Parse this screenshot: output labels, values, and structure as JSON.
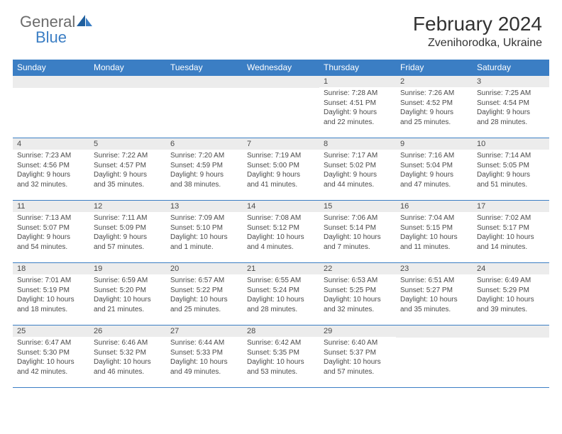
{
  "logo": {
    "general": "General",
    "blue": "Blue"
  },
  "title": {
    "month_year": "February 2024",
    "location": "Zvenihorodka, Ukraine"
  },
  "colors": {
    "header_bg": "#3b7ec4",
    "num_bar_bg": "#ececec",
    "text": "#333333",
    "detail_text": "#4a4a4a"
  },
  "day_names": [
    "Sunday",
    "Monday",
    "Tuesday",
    "Wednesday",
    "Thursday",
    "Friday",
    "Saturday"
  ],
  "weeks": [
    [
      null,
      null,
      null,
      null,
      {
        "num": "1",
        "sunrise": "Sunrise: 7:28 AM",
        "sunset": "Sunset: 4:51 PM",
        "dl1": "Daylight: 9 hours",
        "dl2": "and 22 minutes."
      },
      {
        "num": "2",
        "sunrise": "Sunrise: 7:26 AM",
        "sunset": "Sunset: 4:52 PM",
        "dl1": "Daylight: 9 hours",
        "dl2": "and 25 minutes."
      },
      {
        "num": "3",
        "sunrise": "Sunrise: 7:25 AM",
        "sunset": "Sunset: 4:54 PM",
        "dl1": "Daylight: 9 hours",
        "dl2": "and 28 minutes."
      }
    ],
    [
      {
        "num": "4",
        "sunrise": "Sunrise: 7:23 AM",
        "sunset": "Sunset: 4:56 PM",
        "dl1": "Daylight: 9 hours",
        "dl2": "and 32 minutes."
      },
      {
        "num": "5",
        "sunrise": "Sunrise: 7:22 AM",
        "sunset": "Sunset: 4:57 PM",
        "dl1": "Daylight: 9 hours",
        "dl2": "and 35 minutes."
      },
      {
        "num": "6",
        "sunrise": "Sunrise: 7:20 AM",
        "sunset": "Sunset: 4:59 PM",
        "dl1": "Daylight: 9 hours",
        "dl2": "and 38 minutes."
      },
      {
        "num": "7",
        "sunrise": "Sunrise: 7:19 AM",
        "sunset": "Sunset: 5:00 PM",
        "dl1": "Daylight: 9 hours",
        "dl2": "and 41 minutes."
      },
      {
        "num": "8",
        "sunrise": "Sunrise: 7:17 AM",
        "sunset": "Sunset: 5:02 PM",
        "dl1": "Daylight: 9 hours",
        "dl2": "and 44 minutes."
      },
      {
        "num": "9",
        "sunrise": "Sunrise: 7:16 AM",
        "sunset": "Sunset: 5:04 PM",
        "dl1": "Daylight: 9 hours",
        "dl2": "and 47 minutes."
      },
      {
        "num": "10",
        "sunrise": "Sunrise: 7:14 AM",
        "sunset": "Sunset: 5:05 PM",
        "dl1": "Daylight: 9 hours",
        "dl2": "and 51 minutes."
      }
    ],
    [
      {
        "num": "11",
        "sunrise": "Sunrise: 7:13 AM",
        "sunset": "Sunset: 5:07 PM",
        "dl1": "Daylight: 9 hours",
        "dl2": "and 54 minutes."
      },
      {
        "num": "12",
        "sunrise": "Sunrise: 7:11 AM",
        "sunset": "Sunset: 5:09 PM",
        "dl1": "Daylight: 9 hours",
        "dl2": "and 57 minutes."
      },
      {
        "num": "13",
        "sunrise": "Sunrise: 7:09 AM",
        "sunset": "Sunset: 5:10 PM",
        "dl1": "Daylight: 10 hours",
        "dl2": "and 1 minute."
      },
      {
        "num": "14",
        "sunrise": "Sunrise: 7:08 AM",
        "sunset": "Sunset: 5:12 PM",
        "dl1": "Daylight: 10 hours",
        "dl2": "and 4 minutes."
      },
      {
        "num": "15",
        "sunrise": "Sunrise: 7:06 AM",
        "sunset": "Sunset: 5:14 PM",
        "dl1": "Daylight: 10 hours",
        "dl2": "and 7 minutes."
      },
      {
        "num": "16",
        "sunrise": "Sunrise: 7:04 AM",
        "sunset": "Sunset: 5:15 PM",
        "dl1": "Daylight: 10 hours",
        "dl2": "and 11 minutes."
      },
      {
        "num": "17",
        "sunrise": "Sunrise: 7:02 AM",
        "sunset": "Sunset: 5:17 PM",
        "dl1": "Daylight: 10 hours",
        "dl2": "and 14 minutes."
      }
    ],
    [
      {
        "num": "18",
        "sunrise": "Sunrise: 7:01 AM",
        "sunset": "Sunset: 5:19 PM",
        "dl1": "Daylight: 10 hours",
        "dl2": "and 18 minutes."
      },
      {
        "num": "19",
        "sunrise": "Sunrise: 6:59 AM",
        "sunset": "Sunset: 5:20 PM",
        "dl1": "Daylight: 10 hours",
        "dl2": "and 21 minutes."
      },
      {
        "num": "20",
        "sunrise": "Sunrise: 6:57 AM",
        "sunset": "Sunset: 5:22 PM",
        "dl1": "Daylight: 10 hours",
        "dl2": "and 25 minutes."
      },
      {
        "num": "21",
        "sunrise": "Sunrise: 6:55 AM",
        "sunset": "Sunset: 5:24 PM",
        "dl1": "Daylight: 10 hours",
        "dl2": "and 28 minutes."
      },
      {
        "num": "22",
        "sunrise": "Sunrise: 6:53 AM",
        "sunset": "Sunset: 5:25 PM",
        "dl1": "Daylight: 10 hours",
        "dl2": "and 32 minutes."
      },
      {
        "num": "23",
        "sunrise": "Sunrise: 6:51 AM",
        "sunset": "Sunset: 5:27 PM",
        "dl1": "Daylight: 10 hours",
        "dl2": "and 35 minutes."
      },
      {
        "num": "24",
        "sunrise": "Sunrise: 6:49 AM",
        "sunset": "Sunset: 5:29 PM",
        "dl1": "Daylight: 10 hours",
        "dl2": "and 39 minutes."
      }
    ],
    [
      {
        "num": "25",
        "sunrise": "Sunrise: 6:47 AM",
        "sunset": "Sunset: 5:30 PM",
        "dl1": "Daylight: 10 hours",
        "dl2": "and 42 minutes."
      },
      {
        "num": "26",
        "sunrise": "Sunrise: 6:46 AM",
        "sunset": "Sunset: 5:32 PM",
        "dl1": "Daylight: 10 hours",
        "dl2": "and 46 minutes."
      },
      {
        "num": "27",
        "sunrise": "Sunrise: 6:44 AM",
        "sunset": "Sunset: 5:33 PM",
        "dl1": "Daylight: 10 hours",
        "dl2": "and 49 minutes."
      },
      {
        "num": "28",
        "sunrise": "Sunrise: 6:42 AM",
        "sunset": "Sunset: 5:35 PM",
        "dl1": "Daylight: 10 hours",
        "dl2": "and 53 minutes."
      },
      {
        "num": "29",
        "sunrise": "Sunrise: 6:40 AM",
        "sunset": "Sunset: 5:37 PM",
        "dl1": "Daylight: 10 hours",
        "dl2": "and 57 minutes."
      },
      null,
      null
    ]
  ]
}
